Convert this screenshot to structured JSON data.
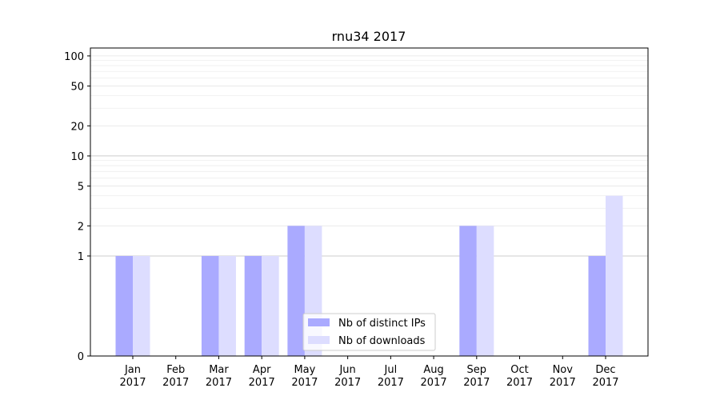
{
  "chart_data": {
    "type": "bar",
    "title": "rnu34 2017",
    "xlabel": "",
    "ylabel": "",
    "yscale": "symlog",
    "ylim": [
      0,
      120
    ],
    "yticks": [
      0,
      1,
      2,
      5,
      10,
      20,
      50,
      100
    ],
    "grid": "horizontal",
    "categories": [
      [
        "Jan",
        "2017"
      ],
      [
        "Feb",
        "2017"
      ],
      [
        "Mar",
        "2017"
      ],
      [
        "Apr",
        "2017"
      ],
      [
        "May",
        "2017"
      ],
      [
        "Jun",
        "2017"
      ],
      [
        "Jul",
        "2017"
      ],
      [
        "Aug",
        "2017"
      ],
      [
        "Sep",
        "2017"
      ],
      [
        "Oct",
        "2017"
      ],
      [
        "Nov",
        "2017"
      ],
      [
        "Dec",
        "2017"
      ]
    ],
    "series": [
      {
        "name": "Nb of distinct IPs",
        "color": "#aaaaff",
        "values": [
          1,
          0,
          1,
          1,
          2,
          0,
          0,
          0,
          2,
          0,
          0,
          1
        ]
      },
      {
        "name": "Nb of downloads",
        "color": "#ddddff",
        "values": [
          1,
          0,
          1,
          1,
          2,
          0,
          0,
          0,
          2,
          0,
          0,
          4
        ]
      }
    ],
    "legend_position": "bottom-center"
  }
}
